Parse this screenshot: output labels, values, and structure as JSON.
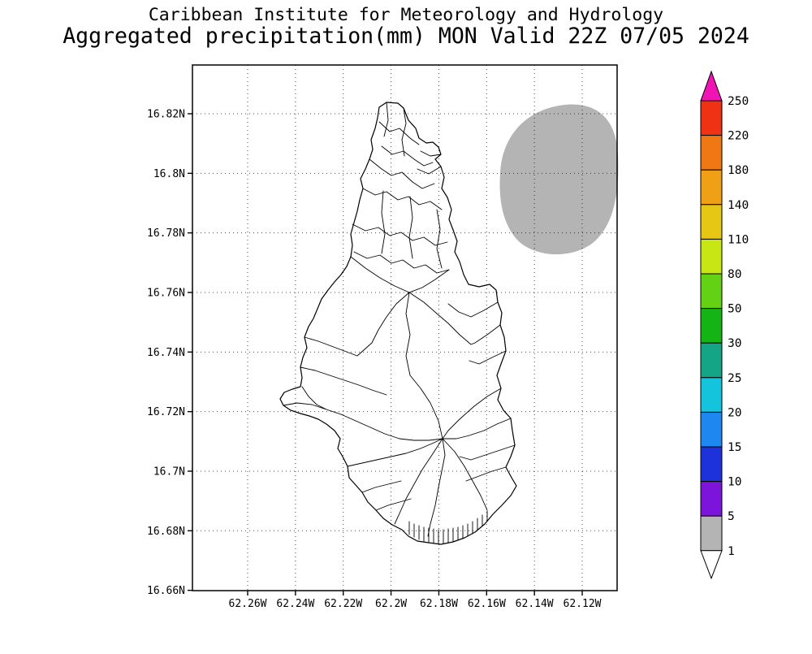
{
  "window": {
    "background": "#ffffff"
  },
  "title": {
    "line1": "Caribbean Institute for Meteorology and Hydrology",
    "line2": "Aggregated precipitation(mm) MON Valid 22Z 07/05 2024"
  },
  "map": {
    "y_axis_labels": [
      "16.82N",
      "16.8N",
      "16.78N",
      "16.76N",
      "16.74N",
      "16.72N",
      "16.7N",
      "16.68N",
      "16.66N"
    ],
    "x_axis_labels": [
      "62.26W",
      "62.24W",
      "62.22W",
      "62.2W",
      "62.18W",
      "62.16W",
      "62.14W",
      "62.12W"
    ],
    "overlay": {
      "fill": "#b4b4b4",
      "note": "light gray shaded precipitation area in northeast corner of map"
    }
  },
  "colorbar": {
    "labels": [
      "250",
      "220",
      "180",
      "140",
      "110",
      "80",
      "50",
      "30",
      "25",
      "20",
      "15",
      "10",
      "5",
      "1"
    ],
    "segment_colors": [
      "#f03214",
      "#f07814",
      "#f0a014",
      "#e6c814",
      "#c8e614",
      "#64d214",
      "#14b414",
      "#14a587",
      "#14c3dc",
      "#1e87f0",
      "#1e32dc",
      "#7d14dc",
      "#b4b4b4"
    ],
    "arrow_top_color": "#f014b4",
    "arrow_bottom_color": "#ffffff"
  }
}
